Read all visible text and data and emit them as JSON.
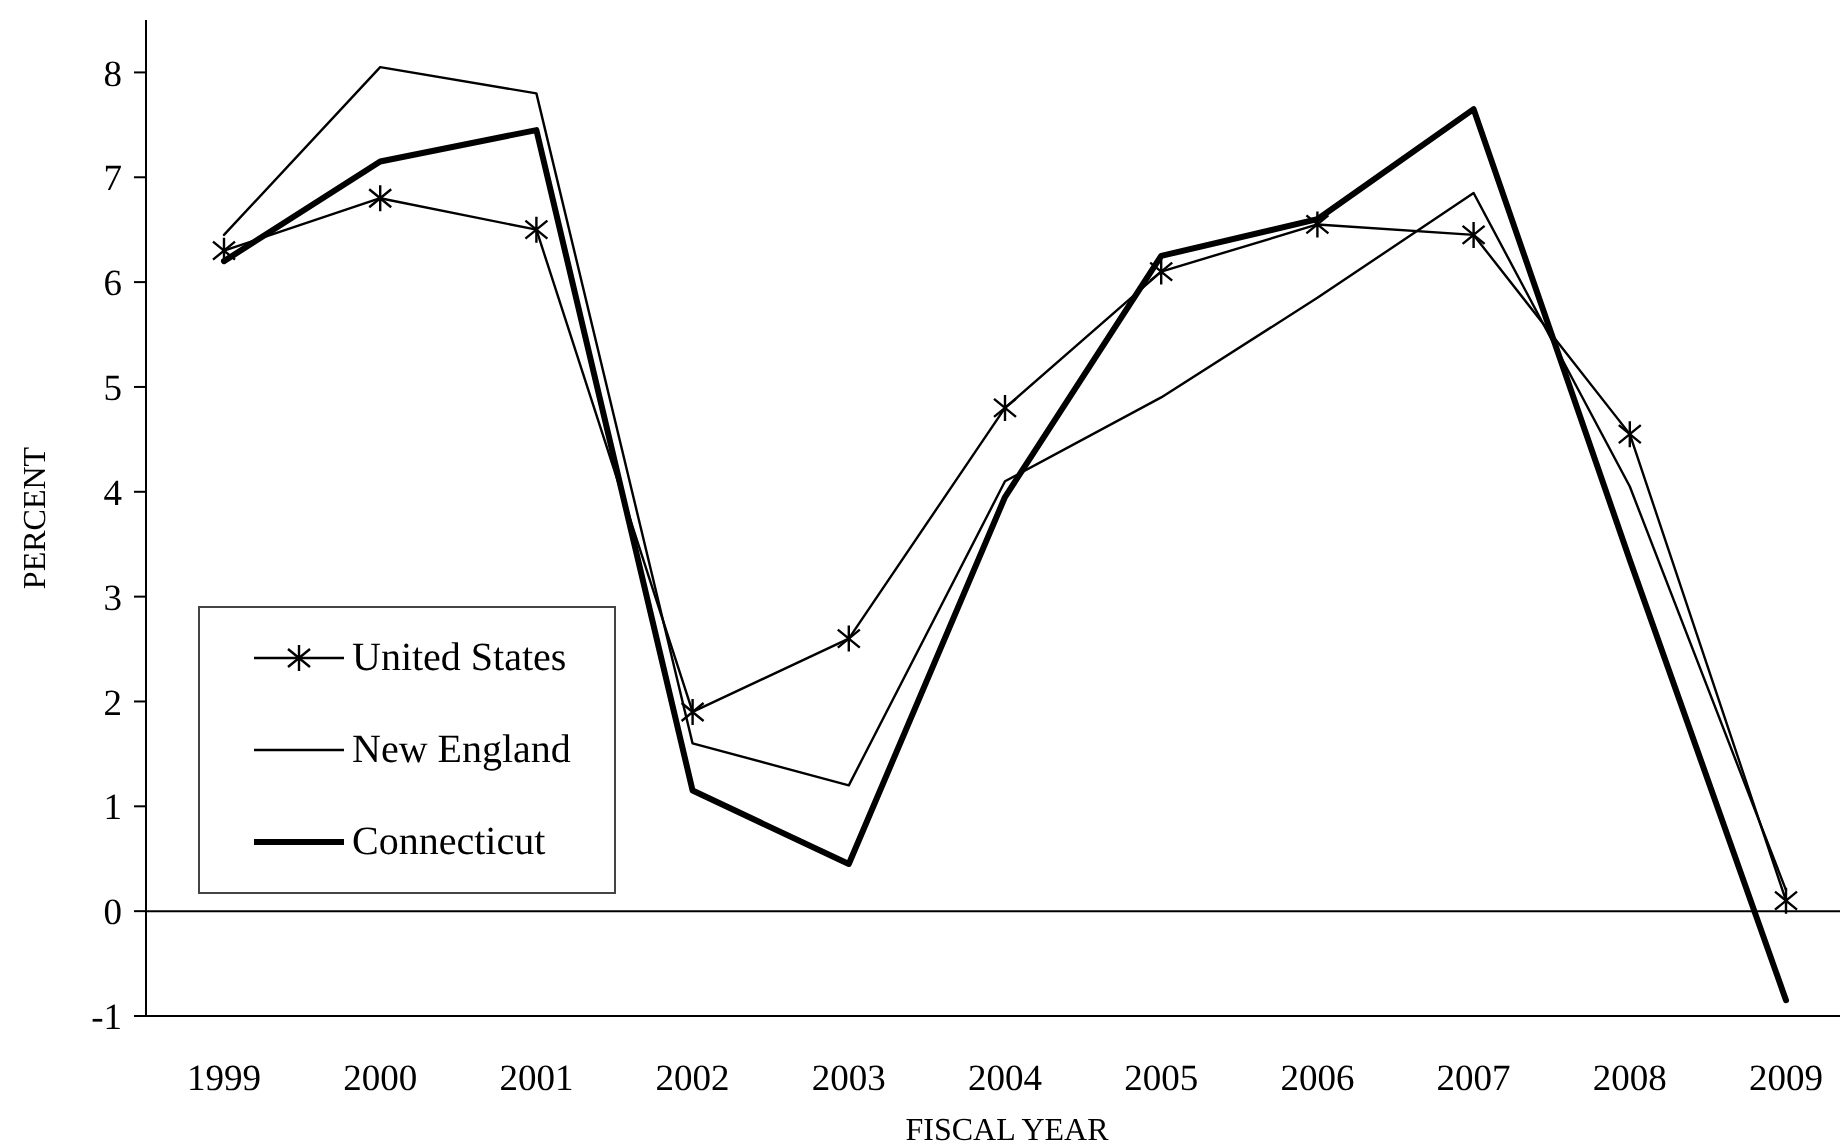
{
  "chart_data": {
    "type": "line",
    "xlabel": "FISCAL YEAR",
    "ylabel": "PERCENT",
    "categories": [
      "1999",
      "2000",
      "2001",
      "2002",
      "2003",
      "2004",
      "2005",
      "2006",
      "2007",
      "2008",
      "2009"
    ],
    "series": [
      {
        "name": "United States",
        "color": "#000000",
        "marker": "cross",
        "values": [
          6.3,
          6.8,
          6.5,
          1.9,
          2.6,
          4.8,
          6.1,
          6.55,
          6.45,
          4.55,
          0.1
        ]
      },
      {
        "name": "New England",
        "color": "#000000",
        "marker": "none",
        "values": [
          6.45,
          8.05,
          7.8,
          1.6,
          1.2,
          4.1,
          4.9,
          5.85,
          6.85,
          4.05,
          0.2
        ]
      },
      {
        "name": "Connecticut",
        "color": "#000000",
        "marker": "none",
        "values": [
          6.2,
          7.15,
          7.45,
          1.15,
          0.45,
          3.95,
          6.25,
          6.6,
          7.65,
          3.35,
          -0.85
        ]
      }
    ],
    "ylim": [
      -1,
      8.5
    ],
    "yticks": [
      -1,
      0,
      1,
      2,
      3,
      4,
      5,
      6,
      7,
      8
    ],
    "ref_lines": [
      {
        "axis": "y",
        "value": 0,
        "color": "#000000"
      }
    ],
    "grid": false,
    "legend": "bottom left",
    "line_style": "solid"
  }
}
